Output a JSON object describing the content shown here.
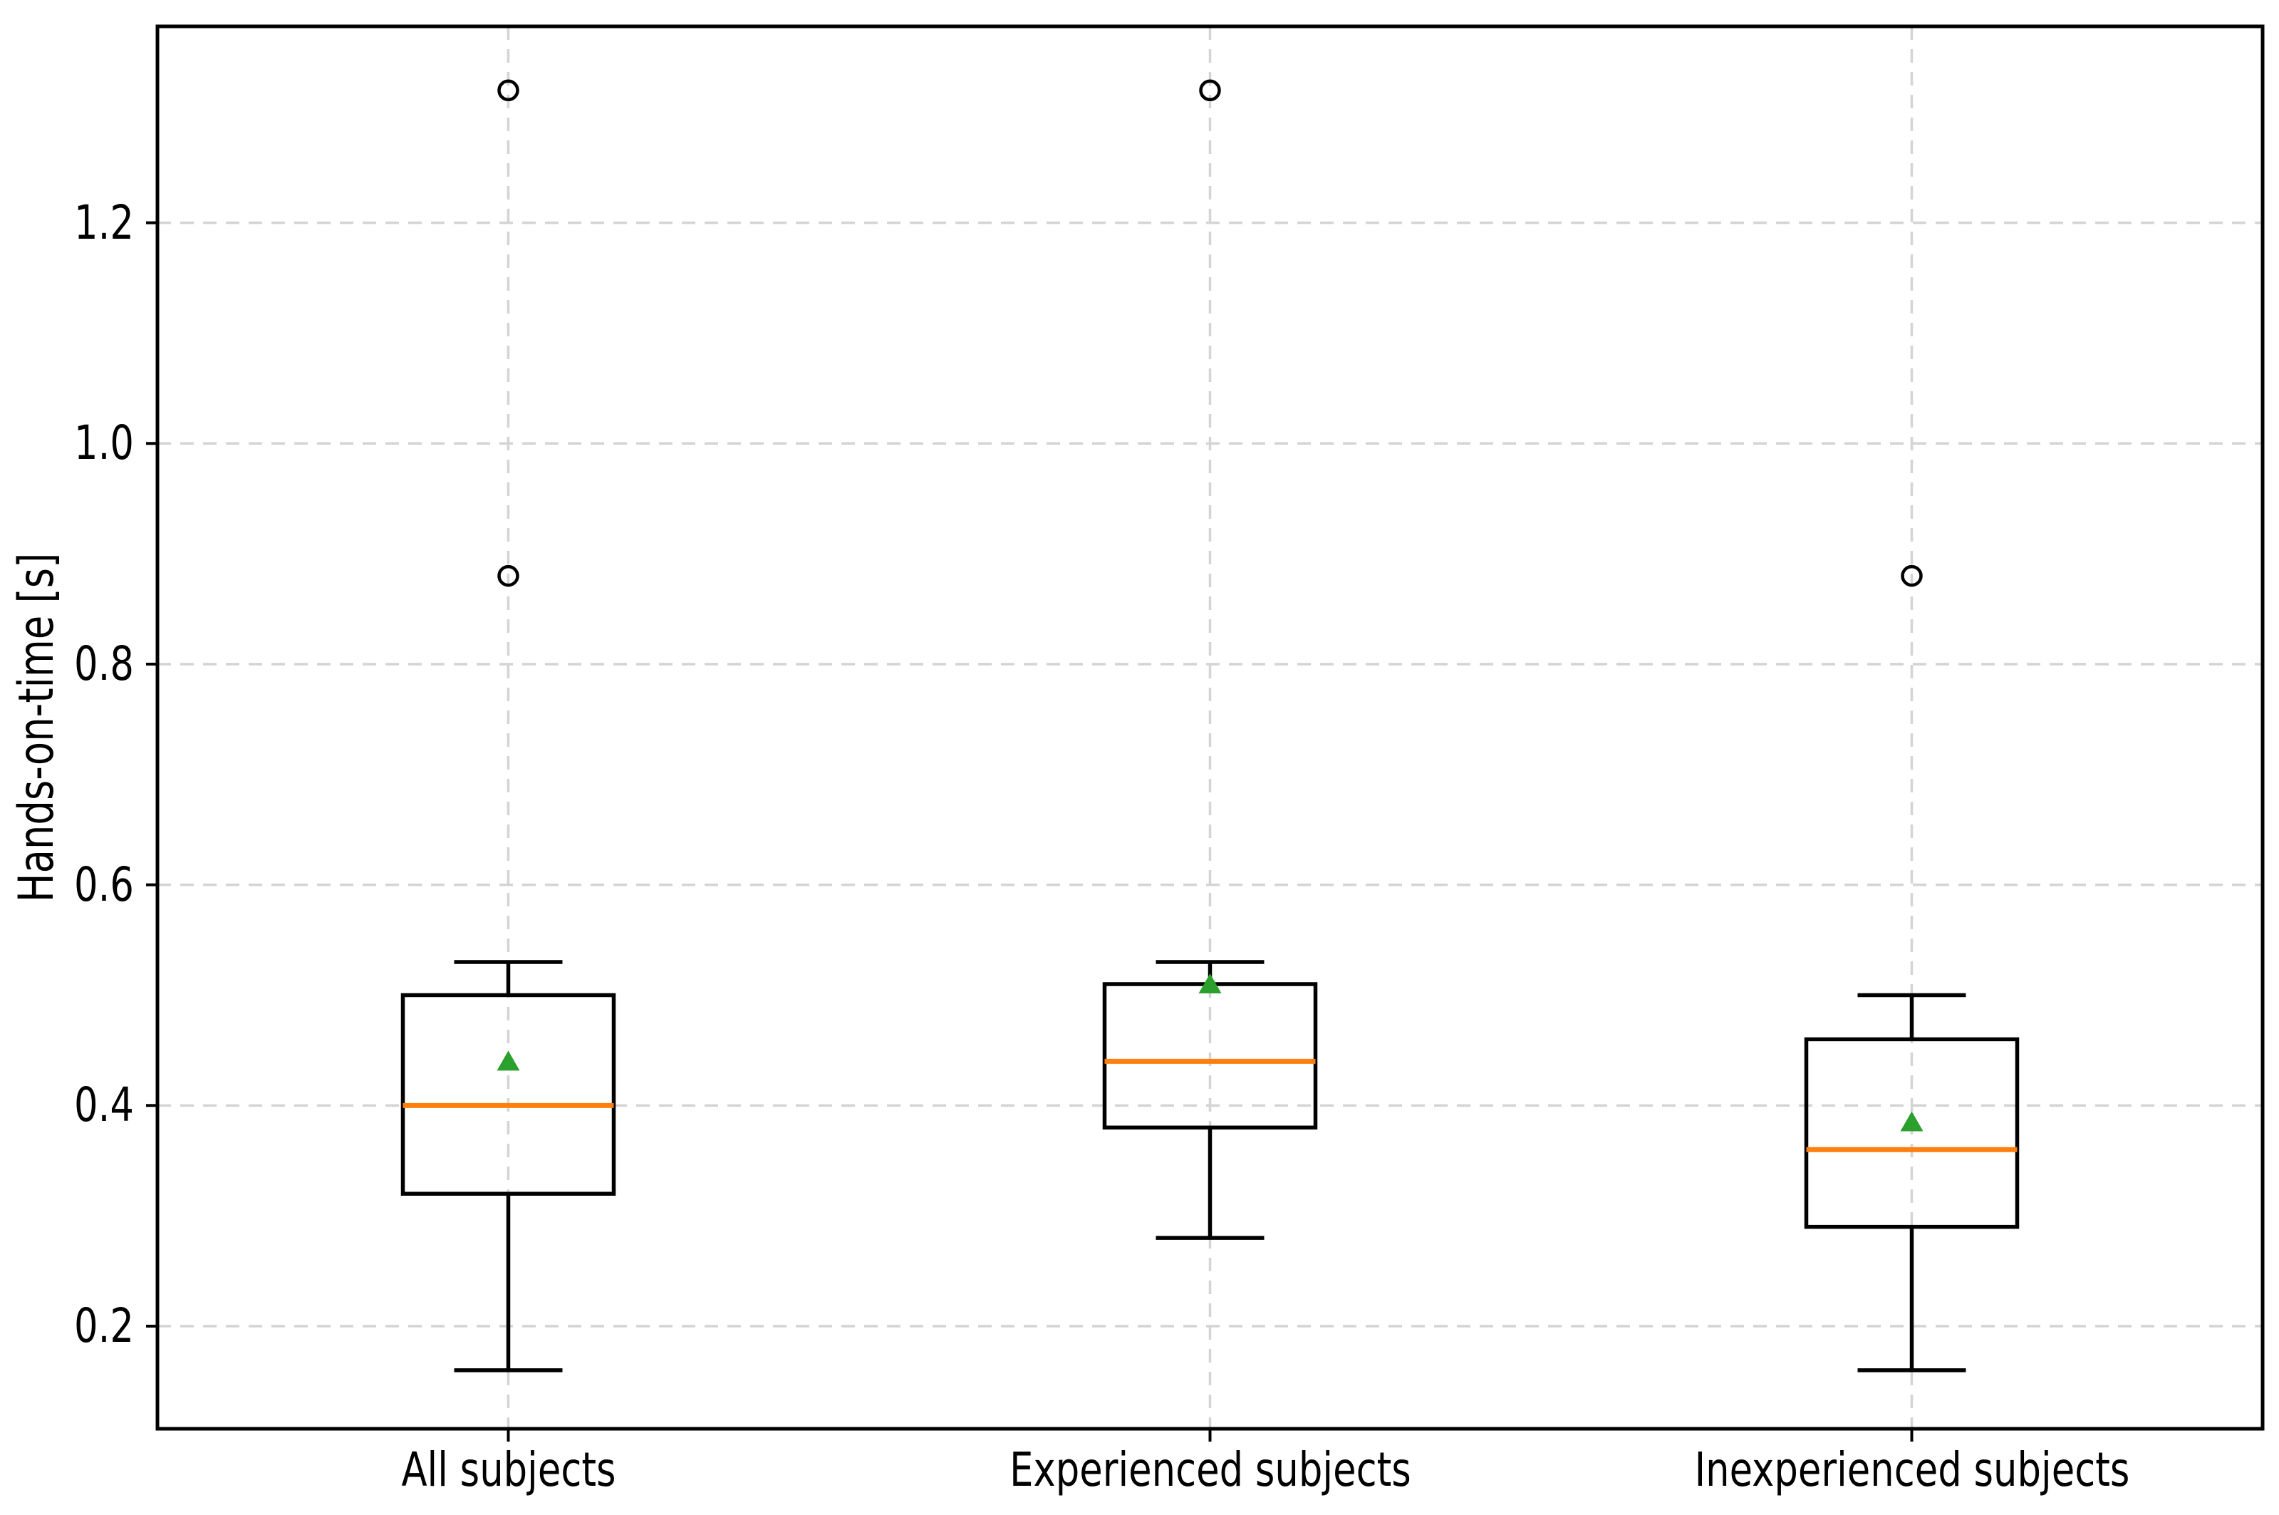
{
  "chart_data": {
    "type": "boxplot",
    "title": "",
    "xlabel": "",
    "ylabel": "Hands-on-time [s]",
    "categories": [
      "All subjects",
      "Experienced subjects",
      "Inexperienced subjects"
    ],
    "yticks": [
      {
        "v": 0.2,
        "label": "0.2"
      },
      {
        "v": 0.4,
        "label": "0.4"
      },
      {
        "v": 0.6,
        "label": "0.6"
      },
      {
        "v": 0.8,
        "label": "0.8"
      },
      {
        "v": 1.0,
        "label": "1.0"
      },
      {
        "v": 1.2,
        "label": "1.2"
      }
    ],
    "ylim": [
      0.107,
      1.378
    ],
    "xlim": [
      0.5,
      3.5
    ],
    "grid": {
      "horizontal": true,
      "vertical": true,
      "style": "dashed"
    },
    "legend": "none",
    "series": [
      {
        "name": "All subjects",
        "position": 1,
        "whisker_low": 0.16,
        "q1": 0.32,
        "median": 0.4,
        "q3": 0.5,
        "whisker_high": 0.53,
        "mean": 0.44,
        "outliers": [
          0.88,
          1.32
        ]
      },
      {
        "name": "Experienced subjects",
        "position": 2,
        "whisker_low": 0.28,
        "q1": 0.38,
        "median": 0.44,
        "q3": 0.51,
        "whisker_high": 0.53,
        "mean": 0.51,
        "outliers": [
          1.32
        ]
      },
      {
        "name": "Inexperienced subjects",
        "position": 3,
        "whisker_low": 0.16,
        "q1": 0.29,
        "median": 0.36,
        "q3": 0.46,
        "whisker_high": 0.5,
        "mean": 0.385,
        "outliers": [
          0.88
        ]
      }
    ],
    "colors": {
      "median": "#ff7f0e",
      "mean_marker": "#2ca02c",
      "box_stroke": "#000000",
      "outlier_stroke": "#000000",
      "grid": "#d4d4d4",
      "axis": "#000000",
      "background": "#ffffff"
    },
    "markers": {
      "mean": "triangle-up",
      "outlier": "open-circle"
    }
  }
}
